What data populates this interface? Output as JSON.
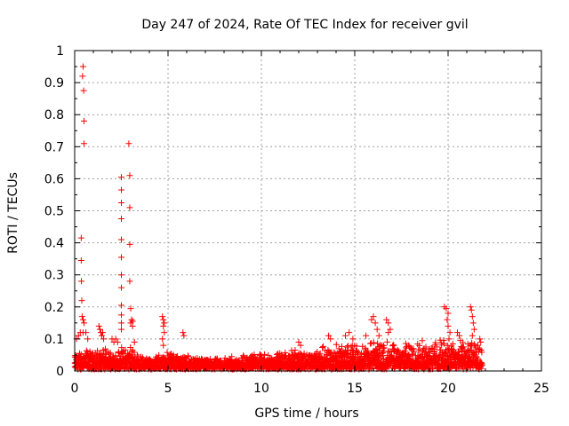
{
  "chart_data": {
    "type": "scatter",
    "title": "Day 247 of 2024, Rate Of TEC Index for receiver gvil",
    "xlabel": "GPS time / hours",
    "ylabel": "ROTI / TECUs",
    "xlim": [
      0,
      25
    ],
    "ylim": [
      0,
      1
    ],
    "xticks": [
      "0",
      "5",
      "10",
      "15",
      "20",
      "25"
    ],
    "yticks": [
      "0",
      "0.1",
      "0.2",
      "0.3",
      "0.4",
      "0.5",
      "0.6",
      "0.7",
      "0.8",
      "0.9",
      "1"
    ],
    "grid": true,
    "marker": "+",
    "color": "#ff0000",
    "series": [
      {
        "points": [
          [
            0.45,
            0.95
          ],
          [
            0.42,
            0.92
          ],
          [
            0.48,
            0.875
          ],
          [
            0.5,
            0.78
          ],
          [
            0.5,
            0.71
          ],
          [
            0.35,
            0.415
          ],
          [
            0.35,
            0.345
          ],
          [
            0.36,
            0.28
          ],
          [
            0.38,
            0.22
          ],
          [
            0.4,
            0.17
          ],
          [
            0.45,
            0.16
          ],
          [
            0.5,
            0.15
          ],
          [
            0.1,
            0.1
          ],
          [
            0.2,
            0.11
          ],
          [
            0.3,
            0.12
          ],
          [
            0.45,
            0.12
          ],
          [
            0.6,
            0.12
          ],
          [
            0.7,
            0.1
          ],
          [
            1.3,
            0.14
          ],
          [
            1.35,
            0.13
          ],
          [
            1.4,
            0.12
          ],
          [
            1.45,
            0.11
          ],
          [
            1.5,
            0.12
          ],
          [
            1.55,
            0.1
          ],
          [
            2.0,
            0.1
          ],
          [
            2.1,
            0.09
          ],
          [
            2.2,
            0.1
          ],
          [
            2.3,
            0.09
          ],
          [
            2.5,
            0.605
          ],
          [
            2.5,
            0.565
          ],
          [
            2.5,
            0.525
          ],
          [
            2.5,
            0.475
          ],
          [
            2.5,
            0.41
          ],
          [
            2.5,
            0.355
          ],
          [
            2.5,
            0.3
          ],
          [
            2.5,
            0.26
          ],
          [
            2.5,
            0.205
          ],
          [
            2.5,
            0.175
          ],
          [
            2.5,
            0.15
          ],
          [
            2.5,
            0.13
          ],
          [
            2.9,
            0.71
          ],
          [
            2.95,
            0.61
          ],
          [
            2.95,
            0.51
          ],
          [
            2.95,
            0.395
          ],
          [
            2.95,
            0.28
          ],
          [
            3.0,
            0.195
          ],
          [
            3.05,
            0.16
          ],
          [
            3.1,
            0.155
          ],
          [
            3.0,
            0.15
          ],
          [
            3.1,
            0.14
          ],
          [
            3.2,
            0.09
          ],
          [
            4.7,
            0.17
          ],
          [
            4.75,
            0.16
          ],
          [
            4.8,
            0.15
          ],
          [
            4.75,
            0.14
          ],
          [
            4.8,
            0.12
          ],
          [
            4.7,
            0.1
          ],
          [
            4.75,
            0.08
          ],
          [
            5.8,
            0.12
          ],
          [
            5.85,
            0.11
          ],
          [
            12.0,
            0.09
          ],
          [
            12.1,
            0.08
          ],
          [
            13.6,
            0.11
          ],
          [
            13.7,
            0.1
          ],
          [
            14.5,
            0.11
          ],
          [
            14.7,
            0.12
          ],
          [
            14.9,
            0.1
          ],
          [
            15.6,
            0.11
          ],
          [
            15.9,
            0.16
          ],
          [
            16.0,
            0.17
          ],
          [
            16.1,
            0.15
          ],
          [
            16.2,
            0.13
          ],
          [
            16.3,
            0.11
          ],
          [
            16.7,
            0.16
          ],
          [
            16.8,
            0.15
          ],
          [
            16.9,
            0.13
          ],
          [
            16.8,
            0.12
          ],
          [
            19.8,
            0.2
          ],
          [
            19.9,
            0.195
          ],
          [
            20.0,
            0.18
          ],
          [
            19.95,
            0.16
          ],
          [
            20.0,
            0.14
          ],
          [
            20.1,
            0.12
          ],
          [
            20.05,
            0.1
          ],
          [
            20.5,
            0.12
          ],
          [
            20.6,
            0.11
          ],
          [
            21.2,
            0.2
          ],
          [
            21.25,
            0.19
          ],
          [
            21.3,
            0.17
          ],
          [
            21.35,
            0.15
          ],
          [
            21.4,
            0.13
          ],
          [
            21.3,
            0.11
          ],
          [
            21.7,
            0.1
          ],
          [
            21.75,
            0.09
          ]
        ],
        "dense_band": [
          [
            0,
            0.045
          ],
          [
            0.5,
            0.06
          ],
          [
            1,
            0.05
          ],
          [
            1.5,
            0.06
          ],
          [
            2,
            0.05
          ],
          [
            2.5,
            0.06
          ],
          [
            3,
            0.065
          ],
          [
            3.5,
            0.04
          ],
          [
            4,
            0.035
          ],
          [
            4.5,
            0.04
          ],
          [
            5,
            0.05
          ],
          [
            5.5,
            0.045
          ],
          [
            6,
            0.04
          ],
          [
            6.5,
            0.035
          ],
          [
            7,
            0.03
          ],
          [
            7.5,
            0.03
          ],
          [
            8,
            0.035
          ],
          [
            8.5,
            0.04
          ],
          [
            9,
            0.04
          ],
          [
            9.5,
            0.045
          ],
          [
            10,
            0.045
          ],
          [
            10.5,
            0.045
          ],
          [
            11,
            0.05
          ],
          [
            11.5,
            0.05
          ],
          [
            12,
            0.055
          ],
          [
            12.5,
            0.055
          ],
          [
            13,
            0.06
          ],
          [
            13.5,
            0.065
          ],
          [
            14,
            0.07
          ],
          [
            14.5,
            0.07
          ],
          [
            15,
            0.075
          ],
          [
            15.5,
            0.075
          ],
          [
            16,
            0.085
          ],
          [
            16.5,
            0.08
          ],
          [
            17,
            0.075
          ],
          [
            17.5,
            0.075
          ],
          [
            18,
            0.075
          ],
          [
            18.5,
            0.08
          ],
          [
            19,
            0.08
          ],
          [
            19.5,
            0.08
          ],
          [
            20,
            0.085
          ],
          [
            20.5,
            0.08
          ],
          [
            21,
            0.08
          ],
          [
            21.5,
            0.075
          ],
          [
            21.8,
            0.06
          ]
        ]
      }
    ]
  }
}
